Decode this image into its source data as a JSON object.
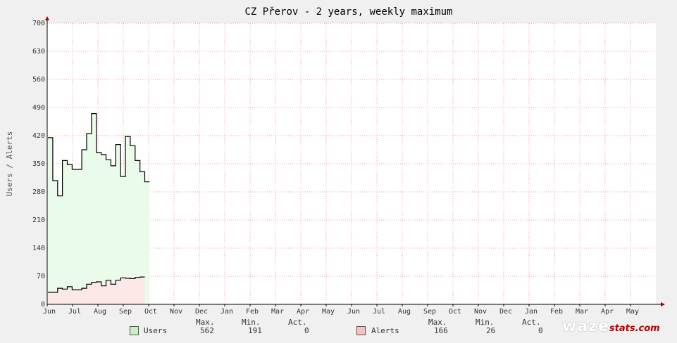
{
  "chart_data": {
    "type": "area",
    "title": "CZ Přerov - 2 years, weekly maximum",
    "ylabel": "Users / Alerts",
    "ylim": [
      0,
      700
    ],
    "y_ticks": [
      "0",
      "70",
      "140",
      "210",
      "280",
      "350",
      "420",
      "490",
      "560",
      "630",
      "700"
    ],
    "x_ticks": [
      "Jun",
      "Jul",
      "Aug",
      "Sep",
      "Oct",
      "Nov",
      "Dec",
      "Jan",
      "Feb",
      "Mar",
      "Apr",
      "May",
      "Jun",
      "Jul",
      "Aug",
      "Sep",
      "Oct",
      "Nov",
      "Dec",
      "Jan",
      "Feb",
      "Mar",
      "Apr",
      "May"
    ],
    "grid": true,
    "week_count": 106,
    "series": [
      {
        "name": "Users",
        "color": "#000000",
        "fill": "#eafbea",
        "values": [
          415,
          308,
          270,
          358,
          348,
          336,
          336,
          385,
          425,
          475,
          378,
          373,
          360,
          345,
          398,
          318,
          418,
          395,
          358,
          330,
          305,
          null,
          null,
          null,
          null,
          null,
          null,
          null,
          null,
          null,
          null,
          null,
          null,
          null,
          null,
          null,
          null,
          null,
          null,
          null,
          null,
          null,
          null,
          null,
          null,
          null,
          null,
          null,
          null,
          null,
          null,
          null,
          null,
          null,
          null,
          null,
          null,
          null,
          null,
          null,
          null,
          null,
          null,
          null,
          null,
          null,
          null,
          null,
          null,
          null,
          null,
          null,
          null,
          null,
          null,
          null,
          null,
          null,
          null,
          null,
          null,
          null,
          null,
          null,
          null,
          null,
          null,
          null,
          null,
          null,
          null,
          null,
          null,
          null,
          null,
          null,
          null,
          null,
          null,
          null,
          null,
          null,
          null,
          null,
          null,
          null
        ]
      },
      {
        "name": "Alerts",
        "color": "#000000",
        "fill": "#fde8e8",
        "values": [
          30,
          30,
          40,
          38,
          44,
          36,
          36,
          40,
          50,
          55,
          56,
          46,
          60,
          50,
          60,
          66,
          65,
          64,
          67,
          68,
          null,
          null,
          null,
          null,
          null,
          null,
          null,
          null,
          null,
          null,
          null,
          null,
          null,
          null,
          null,
          null,
          null,
          null,
          null,
          null,
          null,
          null,
          null,
          null,
          null,
          null,
          null,
          null,
          null,
          null,
          null,
          null,
          null,
          null,
          null,
          null,
          null,
          null,
          null,
          null,
          null,
          null,
          null,
          null,
          null,
          null,
          null,
          null,
          null,
          null,
          null,
          null,
          null,
          null,
          null,
          null,
          null,
          null,
          null,
          null,
          null,
          null,
          null,
          null,
          null,
          null,
          null,
          null,
          null,
          null,
          null,
          null,
          null,
          null,
          null,
          null,
          null,
          null,
          null,
          null,
          null,
          null,
          null,
          null,
          null,
          null
        ]
      }
    ]
  },
  "legend": {
    "headers": {
      "max": "Max.",
      "min": "Min.",
      "act": "Act."
    },
    "users": {
      "name": "Users",
      "max": "562",
      "min": "191",
      "act": "0"
    },
    "alerts": {
      "name": "Alerts",
      "max": "166",
      "min": "26",
      "act": "0"
    },
    "users_color": "#c8f0c0",
    "alerts_color": "#f6c0c0"
  },
  "brand": {
    "waze": "waze",
    "stats": "stats.com"
  }
}
